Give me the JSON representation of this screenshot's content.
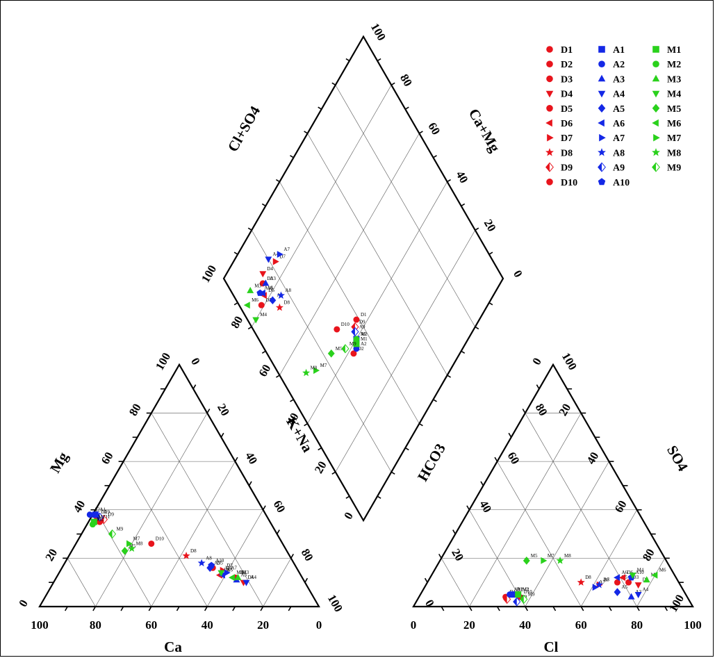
{
  "chart_data": {
    "type": "scatter",
    "subtype": "piper-diagram",
    "axis_titles": {
      "ca": "Ca",
      "mg": "Mg",
      "kna": "K+Na",
      "cl": "Cl",
      "so4": "SO4",
      "hco3": "HCO3",
      "clso4": "Cl+SO4",
      "camg": "Ca+Mg"
    },
    "ticks": [
      "0",
      "20",
      "40",
      "60",
      "80",
      "100"
    ],
    "series": [
      {
        "name": "D1",
        "color": "#e8141c",
        "marker": "circle",
        "cation": [
          61,
          35
        ],
        "anion": [
          31,
          4
        ],
        "diamond": [
          44,
          39
        ]
      },
      {
        "name": "D2",
        "color": "#e8141c",
        "marker": "circle",
        "cation": [
          61,
          37
        ],
        "anion": [
          33,
          5
        ],
        "diamond": [
          38,
          31
        ]
      },
      {
        "name": "D3",
        "color": "#e8141c",
        "marker": "circle",
        "cation": [
          24,
          12
        ],
        "anion": [
          72,
          10
        ],
        "diamond": [
          85,
          13
        ]
      },
      {
        "name": "D4",
        "color": "#e8141c",
        "marker": "triangle-down",
        "cation": [
          22,
          10
        ],
        "anion": [
          76,
          9
        ],
        "diamond": [
          87,
          15
        ]
      },
      {
        "name": "D5",
        "color": "#e8141c",
        "marker": "circle",
        "cation": [
          30,
          16
        ],
        "anion": [
          68,
          10
        ],
        "diamond": [
          81,
          8
        ]
      },
      {
        "name": "D6",
        "color": "#e8141c",
        "marker": "triangle-left",
        "cation": [
          29,
          13
        ],
        "anion": [
          69,
          12
        ],
        "diamond": [
          82,
          11
        ]
      },
      {
        "name": "D7",
        "color": "#e8141c",
        "marker": "triangle-right",
        "cation": [
          27,
          15
        ],
        "anion": [
          62,
          9
        ],
        "diamond": [
          85,
          22
        ]
      },
      {
        "name": "D8",
        "color": "#e8141c",
        "marker": "star",
        "cation": [
          37,
          21
        ],
        "anion": [
          55,
          10
        ],
        "diamond": [
          74,
          14
        ]
      },
      {
        "name": "D9",
        "color": "#e8141c",
        "marker": "half-diamond",
        "cation": [
          59,
          36
        ],
        "anion": [
          32,
          3
        ],
        "diamond": [
          43,
          37
        ]
      },
      {
        "name": "D10",
        "color": "#e8141c",
        "marker": "circle",
        "cation": [
          47,
          26
        ],
        "anion": [
          36,
          4
        ],
        "diamond": [
          49,
          30
        ]
      },
      {
        "name": "A1",
        "color": "#1428e6",
        "marker": "square",
        "cation": [
          61,
          38
        ],
        "anion": [
          33,
          5
        ],
        "diamond": [
          40,
          35
        ]
      },
      {
        "name": "A2",
        "color": "#1428e6",
        "marker": "circle",
        "cation": [
          63,
          38
        ],
        "anion": [
          32,
          5
        ],
        "diamond": [
          38,
          33
        ]
      },
      {
        "name": "A3",
        "color": "#1428e6",
        "marker": "triangle-up",
        "cation": [
          24,
          11
        ],
        "anion": [
          76,
          4
        ],
        "diamond": [
          84,
          14
        ]
      },
      {
        "name": "A4",
        "color": "#1428e6",
        "marker": "triangle-down",
        "cation": [
          21,
          10
        ],
        "anion": [
          78,
          5
        ],
        "diamond": [
          88,
          20
        ]
      },
      {
        "name": "A5",
        "color": "#1428e6",
        "marker": "diamond",
        "cation": [
          31,
          16
        ],
        "anion": [
          70,
          6
        ],
        "diamond": [
          78,
          13
        ]
      },
      {
        "name": "A6",
        "color": "#1428e6",
        "marker": "triangle-left",
        "cation": [
          28,
          13
        ],
        "anion": [
          67,
          12
        ],
        "diamond": [
          83,
          11
        ]
      },
      {
        "name": "A7",
        "color": "#1428e6",
        "marker": "triangle-right",
        "cation": [
          26,
          14
        ],
        "anion": [
          61,
          8
        ],
        "diamond": [
          85,
          25
        ]
      },
      {
        "name": "A8",
        "color": "#1428e6",
        "marker": "star",
        "cation": [
          33,
          18
        ],
        "anion": [
          62,
          9
        ],
        "diamond": [
          76,
          17
        ]
      },
      {
        "name": "A9",
        "color": "#1428e6",
        "marker": "half-diamond",
        "cation": [
          60,
          37
        ],
        "anion": [
          36,
          2
        ],
        "diamond": [
          42,
          36
        ]
      },
      {
        "name": "A10",
        "color": "#1428e6",
        "marker": "pentagon",
        "cation": [
          30,
          17
        ],
        "anion": [
          72,
          12
        ],
        "diamond": [
          84,
          10
        ]
      },
      {
        "name": "M1",
        "color": "#2ad11c",
        "marker": "square",
        "cation": [
          63,
          35
        ],
        "anion": [
          35,
          5
        ],
        "diamond": [
          39,
          34
        ]
      },
      {
        "name": "M2",
        "color": "#2ad11c",
        "marker": "circle",
        "cation": [
          64,
          34
        ],
        "anion": [
          35,
          5
        ],
        "diamond": [
          40,
          35
        ]
      },
      {
        "name": "M3",
        "color": "#2ad11c",
        "marker": "triangle-up",
        "cation": [
          23,
          12
        ],
        "anion": [
          78,
          11
        ],
        "diamond": [
          88,
          7
        ]
      },
      {
        "name": "M4",
        "color": "#2ad11c",
        "marker": "triangle-down",
        "cation": [
          28,
          14
        ],
        "anion": [
          72,
          13
        ],
        "diamond": [
          80,
          3
        ]
      },
      {
        "name": "M5",
        "color": "#2ad11c",
        "marker": "diamond",
        "cation": [
          58,
          23
        ],
        "anion": [
          31,
          19
        ],
        "diamond": [
          46,
          23
        ]
      },
      {
        "name": "M6",
        "color": "#2ad11c",
        "marker": "triangle-left",
        "cation": [
          25,
          12
        ],
        "anion": [
          80,
          13
        ],
        "diamond": [
          86,
          3
        ]
      },
      {
        "name": "M7",
        "color": "#2ad11c",
        "marker": "triangle-right",
        "cation": [
          55,
          26
        ],
        "anion": [
          37,
          19
        ],
        "diamond": [
          48,
          14
        ]
      },
      {
        "name": "M8",
        "color": "#2ad11c",
        "marker": "star",
        "cation": [
          55,
          24
        ],
        "anion": [
          43,
          19
        ],
        "diamond": [
          51,
          10
        ]
      },
      {
        "name": "M9",
        "color": "#2ad11c",
        "marker": "half-diamond",
        "cation": [
          59,
          30
        ],
        "anion": [
          38,
          3
        ],
        "diamond": [
          42,
          29
        ]
      }
    ],
    "legend_position": "top-right"
  }
}
